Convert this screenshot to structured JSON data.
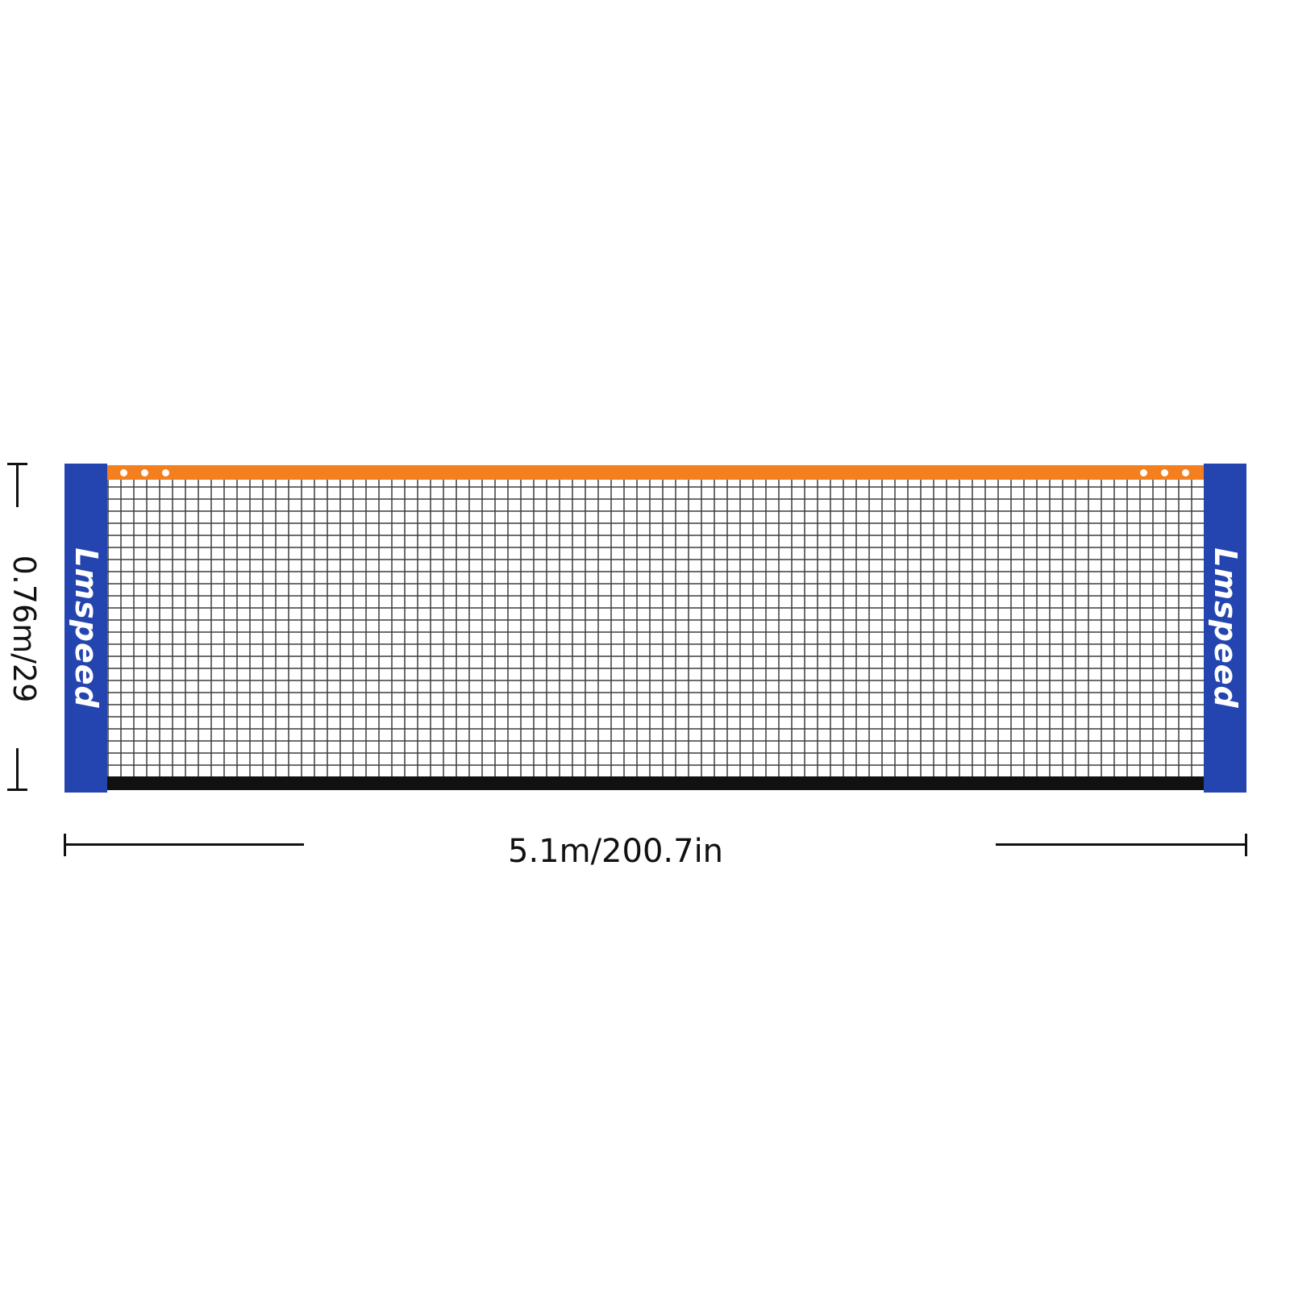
{
  "product": {
    "brand_logo": "Lmspeed",
    "width_label": "5.1m/200.7in",
    "height_label": "0.76m/29"
  },
  "colors": {
    "post": "#2444b0",
    "top_band": "#f47f1f",
    "bottom_band": "#111111",
    "mesh": "#3c3c3c"
  }
}
